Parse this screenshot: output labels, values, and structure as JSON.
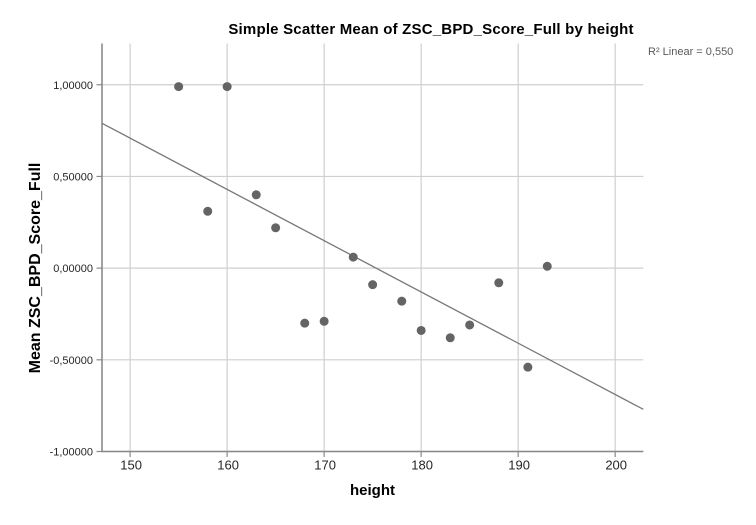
{
  "chart_data": {
    "type": "scatter",
    "title": "Simple Scatter Mean of ZSC_BPD_Score_Full by height",
    "xlabel": "height",
    "ylabel": "Mean ZSC_BPD_Score_Full",
    "annotation": "R² Linear = 0,550",
    "r_squared": 0.55,
    "x_ticks": [
      150,
      160,
      170,
      180,
      190,
      200
    ],
    "x_tick_labels": [
      "150",
      "160",
      "170",
      "180",
      "190",
      "200"
    ],
    "y_ticks": [
      1.0,
      0.5,
      0.0,
      -0.5,
      -1.0
    ],
    "y_tick_labels": [
      "1,00000",
      "0,50000",
      "0,00000",
      "-0,50000",
      "-1,00000"
    ],
    "xlim": [
      147.1,
      202.9
    ],
    "ylim": [
      -1.0,
      1.225
    ],
    "grid": true,
    "series": [
      {
        "name": "Mean ZSC_BPD_Score_Full by height",
        "points": [
          {
            "x": 155,
            "y": 0.99
          },
          {
            "x": 158,
            "y": 0.31
          },
          {
            "x": 160,
            "y": 0.99
          },
          {
            "x": 163,
            "y": 0.4
          },
          {
            "x": 165,
            "y": 0.22
          },
          {
            "x": 168,
            "y": -0.3
          },
          {
            "x": 170,
            "y": -0.29
          },
          {
            "x": 173,
            "y": 0.06
          },
          {
            "x": 175,
            "y": -0.09
          },
          {
            "x": 178,
            "y": -0.18
          },
          {
            "x": 180,
            "y": -0.34
          },
          {
            "x": 183,
            "y": -0.38
          },
          {
            "x": 185,
            "y": -0.31
          },
          {
            "x": 188,
            "y": -0.08
          },
          {
            "x": 191,
            "y": -0.54
          },
          {
            "x": 193,
            "y": 0.01
          }
        ]
      }
    ],
    "fit_line": {
      "x1": 147.1,
      "y1": 0.79,
      "x2": 202.9,
      "y2": -0.77
    }
  },
  "colors": {
    "background": "#ffffff",
    "point": "#646464",
    "grid": "#cfcfcf",
    "axis": "#8a8a8a",
    "fit_line": "#787878",
    "tick_label": "#262626",
    "title": "#000000",
    "annotation": "#5a5a5a"
  }
}
